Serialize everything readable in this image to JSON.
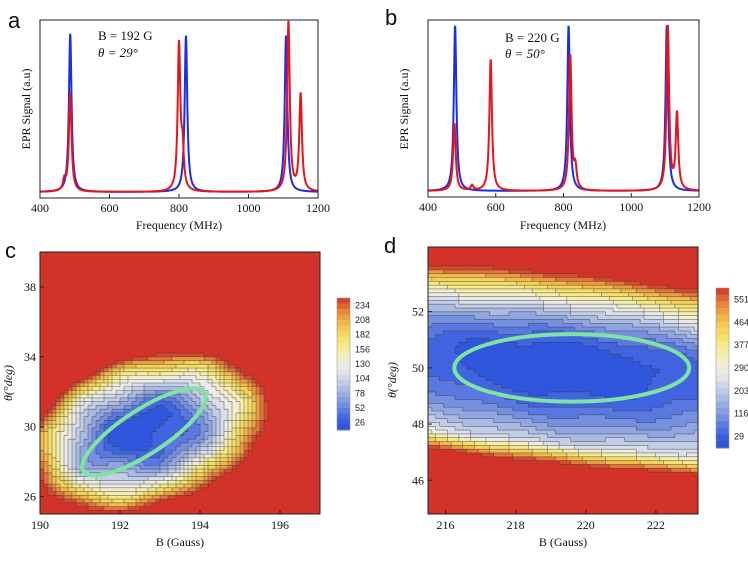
{
  "panel_labels": {
    "a": "a",
    "b": "b",
    "c": "c",
    "d": "d"
  },
  "colors": {
    "red": "#e8141c",
    "blue": "#1a2ee6",
    "ellipse": "#7ee3a3"
  },
  "chart_data": [
    {
      "id": "a",
      "type": "line",
      "xlabel": "Frequency (MHz)",
      "ylabel": "EPR Signal (a.u)",
      "xlim": [
        400,
        1200
      ],
      "xticks": [
        "400",
        "600",
        "800",
        "1000",
        "1200"
      ],
      "annotation": {
        "line1": "B = 192 G",
        "line2": "θ = 29°"
      },
      "series": [
        {
          "name": "blue",
          "color": "#1a2ee6",
          "peaks": [
            [
              487,
              0.93
            ],
            [
              820,
              0.92
            ],
            [
              1108,
              0.92
            ]
          ]
        },
        {
          "name": "red",
          "color": "#e8141c",
          "peaks": [
            [
              470,
              0.06
            ],
            [
              487,
              0.58
            ],
            [
              800,
              0.86
            ],
            [
              810,
              0.22
            ],
            [
              1115,
              1.0
            ],
            [
              1150,
              0.57
            ]
          ]
        }
      ]
    },
    {
      "id": "b",
      "type": "line",
      "xlabel": "Frequency (MHz)",
      "ylabel": "EPR Signal (a.u)",
      "xlim": [
        400,
        1200
      ],
      "xticks": [
        "400",
        "600",
        "800",
        "1000",
        "1200"
      ],
      "annotation": {
        "line1": "B = 220 G",
        "line2": "θ = 50°"
      },
      "series": [
        {
          "name": "blue",
          "color": "#1a2ee6",
          "peaks": [
            [
              480,
              0.98
            ],
            [
              815,
              0.98
            ],
            [
              1105,
              0.98
            ]
          ]
        },
        {
          "name": "red",
          "color": "#e8141c",
          "peaks": [
            [
              478,
              0.4
            ],
            [
              530,
              0.03
            ],
            [
              585,
              0.78
            ],
            [
              820,
              0.8
            ],
            [
              835,
              0.12
            ],
            [
              1108,
              0.97
            ],
            [
              1135,
              0.45
            ]
          ]
        }
      ]
    },
    {
      "id": "c",
      "type": "heatmap",
      "xlabel": "B (Gauss)",
      "ylabel": "θ(°deg)",
      "xlim": [
        190,
        197
      ],
      "ylim": [
        25,
        40
      ],
      "xticks": [
        "190",
        "192",
        "194",
        "196"
      ],
      "yticks": [
        "26",
        "30",
        "34",
        "38"
      ],
      "colorbar_ticks": [
        "234",
        "208",
        "182",
        "156",
        "130",
        "104",
        "78",
        "52",
        "26"
      ],
      "contour_model": {
        "min": 12,
        "max": 246,
        "center": [
          192.6,
          29.7
        ],
        "a": 0.62,
        "b": 0.45,
        "angle_deg": 35,
        "rx": 1.6,
        "ry": 2.6,
        "gradient": [
          1.3,
          0.8
        ]
      },
      "ellipse": {
        "center": [
          192.6,
          29.7
        ],
        "angle_deg": 33,
        "half_axes_data": [
          1.9,
          2.3
        ]
      }
    },
    {
      "id": "d",
      "type": "heatmap",
      "xlabel": "B (Gauss)",
      "ylabel": "θ(°deg)",
      "xlim": [
        215.5,
        223.2
      ],
      "ylim": [
        44.8,
        54.3
      ],
      "xticks": [
        "216",
        "218",
        "220",
        "222"
      ],
      "yticks": [
        "46",
        "48",
        "50",
        "52"
      ],
      "colorbar_ticks": [
        "551",
        "464",
        "377",
        "290",
        "203",
        "116",
        "29"
      ],
      "contour_model": {
        "min": 0,
        "max": 580,
        "center": [
          219.3,
          50.1
        ],
        "slope": -0.12,
        "ry_top": 2.4,
        "ry_bottom": 3.3,
        "rx": 3.5
      },
      "ellipse": {
        "center": [
          219.6,
          50.0
        ],
        "angle_deg": 0,
        "half_axes_data": [
          3.35,
          1.2
        ]
      }
    }
  ]
}
